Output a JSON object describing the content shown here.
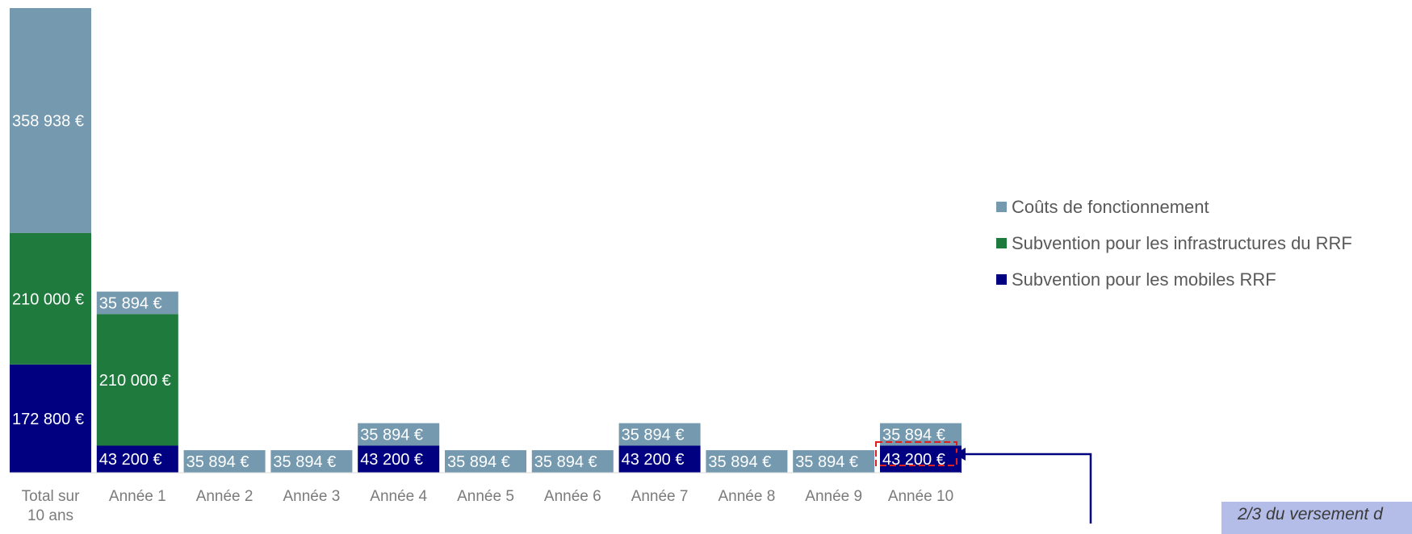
{
  "chart_data": {
    "type": "bar",
    "stacked": true,
    "categories": [
      "Total sur\n10 ans",
      "Année 1",
      "Année 2",
      "Année 3",
      "Année 4",
      "Année 5",
      "Année 6",
      "Année 7",
      "Année 8",
      "Année 9",
      "Année 10"
    ],
    "series": [
      {
        "name": "Subvention pour les mobiles RRF",
        "color": "#000080",
        "values": [
          172800,
          43200,
          0,
          0,
          43200,
          0,
          0,
          43200,
          0,
          0,
          43200
        ],
        "labels": [
          "172 800 €",
          "43 200 €",
          "",
          "",
          "43 200 €",
          "",
          "",
          "43 200 €",
          "",
          "",
          "43 200 €"
        ]
      },
      {
        "name": "Subvention pour les infrastructures du RRF",
        "color": "#1f7a3e",
        "values": [
          210000,
          210000,
          0,
          0,
          0,
          0,
          0,
          0,
          0,
          0,
          0
        ],
        "labels": [
          "210 000 €",
          "210 000 €",
          "",
          "",
          "",
          "",
          "",
          "",
          "",
          "",
          ""
        ]
      },
      {
        "name": "Coûts de fonctionnement",
        "color": "#7599ae",
        "values": [
          358938,
          35894,
          35894,
          35894,
          35894,
          35894,
          35894,
          35894,
          35894,
          35894,
          35894
        ],
        "labels": [
          "358 938 €",
          "35 894 €",
          "35 894 €",
          "35 894 €",
          "35 894 €",
          "35 894 €",
          "35 894 €",
          "35 894 €",
          "35 894 €",
          "35 894 €",
          "35 894 €"
        ]
      }
    ],
    "legend_order": [
      "Coûts de fonctionnement",
      "Subvention pour les infrastructures du RRF",
      "Subvention pour les mobiles RRF"
    ],
    "legend_position": "right",
    "ylim": [
      0,
      741738
    ],
    "grid": false
  },
  "annotation": {
    "text": "2/3 du versement d",
    "highlight_color": "#e02020",
    "arrow_color": "#000080"
  }
}
